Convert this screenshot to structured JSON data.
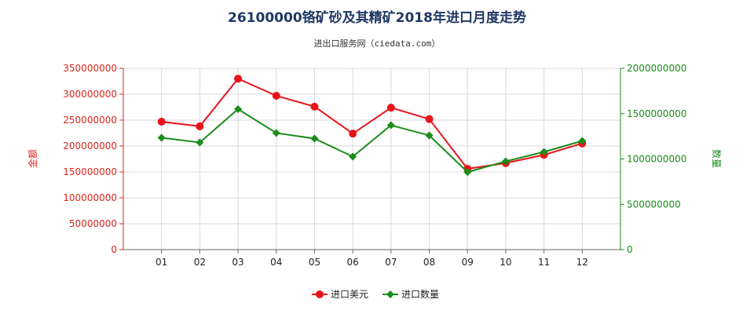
{
  "chart_data": {
    "type": "line",
    "title": "26100000铬矿砂及其精矿2018年进口月度走势",
    "subtitle": "进出口服务网（ciedata.com）",
    "categories": [
      "01",
      "02",
      "03",
      "04",
      "05",
      "06",
      "07",
      "08",
      "09",
      "10",
      "11",
      "12"
    ],
    "series": [
      {
        "name": "进口美元",
        "y_axis_index": 0,
        "color": "#e8141b",
        "values": [
          247000000,
          238000000,
          330000000,
          297000000,
          276000000,
          224000000,
          274000000,
          252000000,
          156000000,
          167000000,
          183000000,
          205000000
        ]
      },
      {
        "name": "进口数量",
        "y_axis_index": 1,
        "color": "#1a8c1a",
        "values": [
          1234000000,
          1182000000,
          1550000000,
          1286000000,
          1225000000,
          1026000000,
          1372000000,
          1260000000,
          855000000,
          974000000,
          1078000000,
          1199000000
        ]
      }
    ],
    "y_left": {
      "label": "金额",
      "range": [
        0,
        350000000
      ],
      "ticks": [
        0,
        50000000,
        100000000,
        150000000,
        200000000,
        250000000,
        300000000,
        350000000
      ],
      "color": "#d9251c"
    },
    "y_right": {
      "label": "数量",
      "range": [
        0,
        2000000000
      ],
      "ticks": [
        0,
        500000000,
        1000000000,
        1500000000,
        2000000000
      ],
      "color": "#1a8c1a"
    },
    "grid": true,
    "legend": "bottom"
  }
}
